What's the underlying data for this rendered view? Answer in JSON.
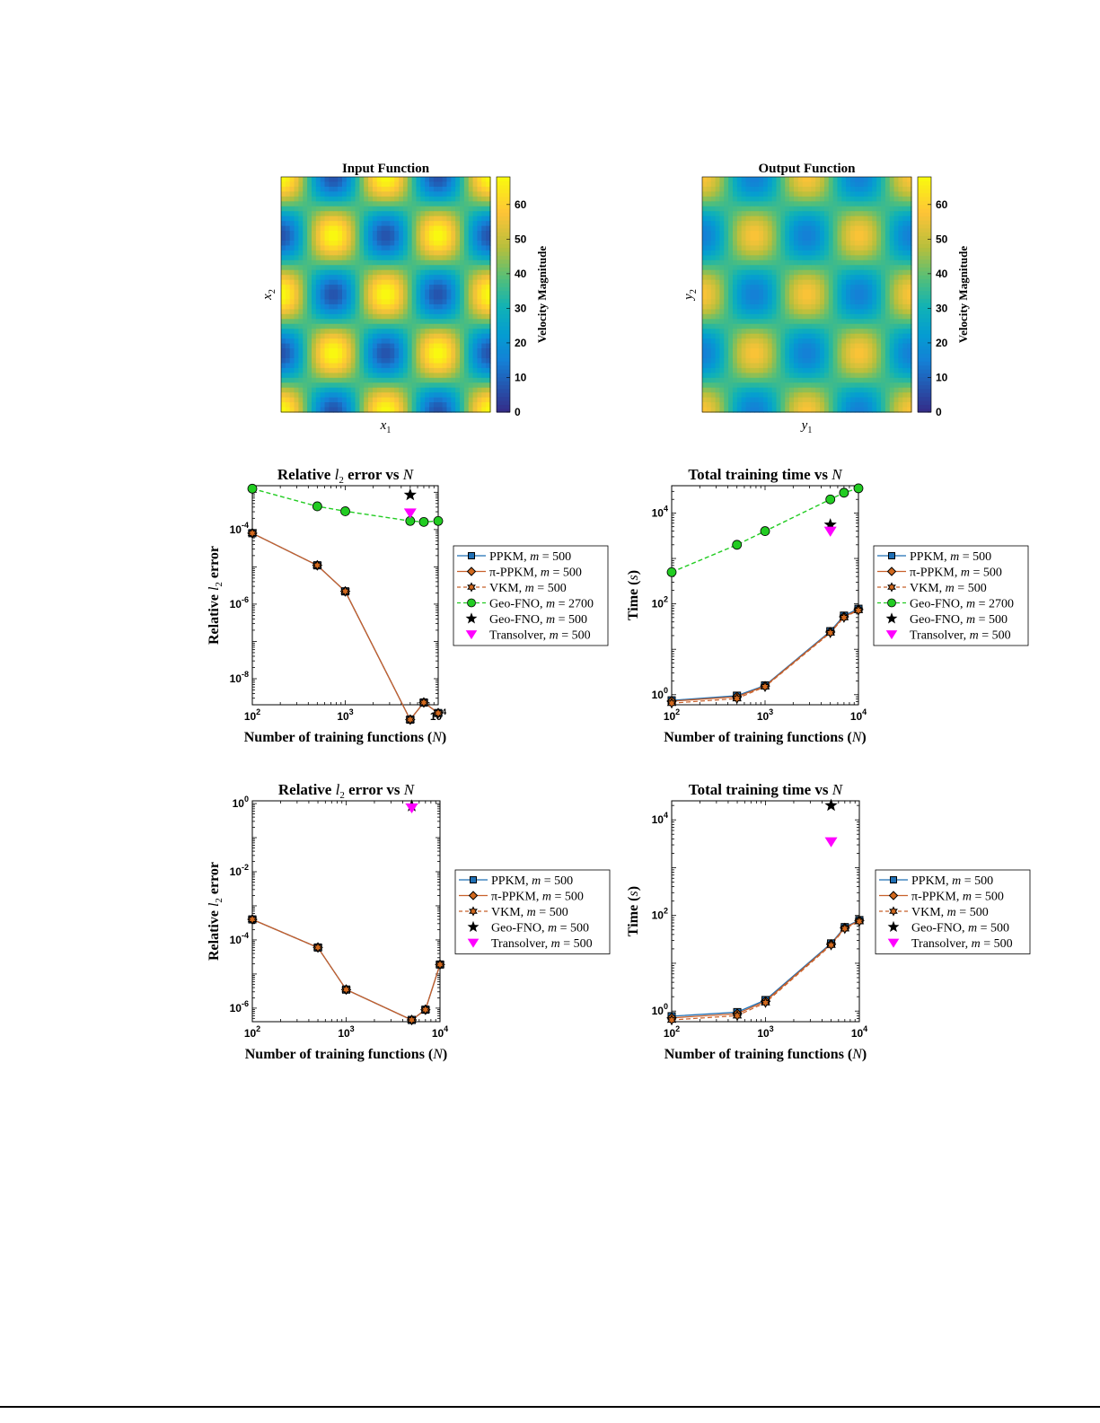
{
  "colors": {
    "ppkm": "#1f6fb4",
    "pippkm": "#d2691e",
    "vkm": "#d2691e",
    "geofno2700": "#22cc22",
    "geofno500": "#000000",
    "transolver": "#ff00ff",
    "line": "#c8602a"
  },
  "chart_data": [
    {
      "type": "heatmap",
      "title": "Input Function",
      "xlabel": "x1",
      "ylabel": "x2",
      "colorbar_label": "Velocity Magnitude",
      "colorbar_ticks": [
        0,
        10,
        20,
        30,
        40,
        50,
        60
      ],
      "clim": [
        0,
        68
      ],
      "colormap": "parula"
    },
    {
      "type": "heatmap",
      "title": "Output Function",
      "xlabel": "y1",
      "ylabel": "y2",
      "colorbar_label": "Velocity Magnitude",
      "colorbar_ticks": [
        0,
        10,
        20,
        30,
        40,
        50,
        60
      ],
      "clim": [
        0,
        68
      ],
      "colormap": "parula"
    },
    {
      "type": "line",
      "title": "Relative l2 error vs N",
      "xlabel": "Number of training functions (N)",
      "ylabel": "Relative l2 error",
      "xscale": "log",
      "yscale": "log",
      "xlim": [
        100,
        10000
      ],
      "ylim": [
        2e-09,
        0.0015
      ],
      "xticks": [
        {
          "v": 100,
          "label": "10^2"
        },
        {
          "v": 1000,
          "label": "10^3"
        },
        {
          "v": 10000,
          "label": "10^4"
        }
      ],
      "yticks": [
        {
          "v": 0.0001,
          "label": "10^-4"
        },
        {
          "v": 1e-06,
          "label": "10^-6"
        },
        {
          "v": 1e-08,
          "label": "10^-8"
        }
      ],
      "legend": "right",
      "series": [
        {
          "name": "PPKM,  m = 500",
          "key": "ppkm",
          "x": [
            100,
            500,
            1000,
            5000,
            7000,
            10000
          ],
          "values": [
            8e-05,
            1.1e-05,
            2.2e-06,
            8e-10,
            2.3e-09,
            1.2e-09
          ]
        },
        {
          "name": "π-PPKM,  m = 500",
          "key": "pippkm",
          "x": [
            100,
            500,
            1000,
            5000,
            7000,
            10000
          ],
          "values": [
            8e-05,
            1.1e-05,
            2.2e-06,
            8e-10,
            2.3e-09,
            1.2e-09
          ]
        },
        {
          "name": "VKM, m = 500",
          "key": "vkm",
          "x": [
            100,
            500,
            1000,
            5000,
            7000,
            10000
          ],
          "values": [
            8e-05,
            1.1e-05,
            2.2e-06,
            8e-10,
            2.3e-09,
            1.2e-09
          ]
        },
        {
          "name": "Geo-FNO, m = 2700",
          "key": "geofno2700",
          "x": [
            100,
            500,
            1000,
            5000,
            7000,
            10000
          ],
          "values": [
            0.00125,
            0.00042,
            0.00031,
            0.00017,
            0.00016,
            0.00017
          ]
        },
        {
          "name": "Geo-FNO, m = 500",
          "key": "geofno500",
          "x": [
            5000
          ],
          "values": [
            0.00085
          ]
        },
        {
          "name": "Transolver, m = 500",
          "key": "transolver",
          "x": [
            5000
          ],
          "values": [
            0.00028
          ]
        }
      ]
    },
    {
      "type": "line",
      "title": "Total training time vs N",
      "xlabel": "Number of training functions (N)",
      "ylabel": "Time (s)",
      "xscale": "log",
      "yscale": "log",
      "xlim": [
        100,
        10000
      ],
      "ylim": [
        0.6,
        40000
      ],
      "xticks": [
        {
          "v": 100,
          "label": "10^2"
        },
        {
          "v": 1000,
          "label": "10^3"
        },
        {
          "v": 10000,
          "label": "10^4"
        }
      ],
      "yticks": [
        {
          "v": 1,
          "label": "10^0"
        },
        {
          "v": 100,
          "label": "10^2"
        },
        {
          "v": 10000,
          "label": "10^4"
        }
      ],
      "legend": "right",
      "series": [
        {
          "name": "PPKM,  m = 500",
          "key": "ppkm",
          "x": [
            100,
            500,
            1000,
            5000,
            7000,
            10000
          ],
          "values": [
            0.75,
            0.95,
            1.6,
            25,
            55,
            78
          ]
        },
        {
          "name": "π-PPKM,  m = 500",
          "key": "pippkm",
          "x": [
            100,
            500,
            1000,
            5000,
            7000,
            10000
          ],
          "values": [
            0.72,
            0.9,
            1.55,
            24,
            52,
            75
          ]
        },
        {
          "name": "VKM, m = 500",
          "key": "vkm",
          "x": [
            100,
            500,
            1000,
            5000,
            7000,
            10000
          ],
          "values": [
            0.65,
            0.82,
            1.5,
            23,
            50,
            72
          ]
        },
        {
          "name": "Geo-FNO, m = 2700",
          "key": "geofno2700",
          "x": [
            100,
            500,
            1000,
            5000,
            7000,
            10000
          ],
          "values": [
            500,
            2000,
            4000,
            20000,
            28000,
            35000
          ]
        },
        {
          "name": "Geo-FNO, m = 500",
          "key": "geofno500",
          "x": [
            5000
          ],
          "values": [
            5500
          ]
        },
        {
          "name": "Transolver, m = 500",
          "key": "transolver",
          "x": [
            5000
          ],
          "values": [
            4000
          ]
        }
      ]
    },
    {
      "type": "line",
      "title": "Relative l2 error vs N",
      "xlabel": "Number of training functions (N)",
      "ylabel": "Relative l2 error",
      "xscale": "log",
      "yscale": "log",
      "xlim": [
        100,
        10000
      ],
      "ylim": [
        4e-07,
        1.2
      ],
      "xticks": [
        {
          "v": 100,
          "label": "10^2"
        },
        {
          "v": 1000,
          "label": "10^3"
        },
        {
          "v": 10000,
          "label": "10^4"
        }
      ],
      "yticks": [
        {
          "v": 1,
          "label": "10^0"
        },
        {
          "v": 0.01,
          "label": "10^-2"
        },
        {
          "v": 0.0001,
          "label": "10^-4"
        },
        {
          "v": 1e-06,
          "label": "10^-6"
        }
      ],
      "legend": "right",
      "series": [
        {
          "name": "PPKM,  m = 500",
          "key": "ppkm",
          "x": [
            100,
            500,
            1000,
            5000,
            7000,
            10000
          ],
          "values": [
            0.0004,
            6e-05,
            3.5e-06,
            4.5e-07,
            9e-07,
            1.9e-05
          ]
        },
        {
          "name": "π-PPKM,  m = 500",
          "key": "pippkm",
          "x": [
            100,
            500,
            1000,
            5000,
            7000,
            10000
          ],
          "values": [
            0.0004,
            6e-05,
            3.5e-06,
            4.5e-07,
            9e-07,
            1.9e-05
          ]
        },
        {
          "name": "VKM, m = 500",
          "key": "vkm",
          "x": [
            100,
            500,
            1000,
            5000,
            7000,
            10000
          ],
          "values": [
            0.0004,
            6e-05,
            3.5e-06,
            4.5e-07,
            9e-07,
            1.9e-05
          ]
        },
        {
          "name": "Geo-FNO, m = 500",
          "key": "geofno500",
          "x": [
            5000
          ],
          "values": [
            0.85
          ]
        },
        {
          "name": "Transolver, m = 500",
          "key": "transolver",
          "x": [
            5000
          ],
          "values": [
            0.75
          ]
        }
      ]
    },
    {
      "type": "line",
      "title": "Total training time vs N",
      "xlabel": "Number of training functions (N)",
      "ylabel": "Time (s)",
      "xscale": "log",
      "yscale": "log",
      "xlim": [
        100,
        10000
      ],
      "ylim": [
        0.6,
        25000
      ],
      "xticks": [
        {
          "v": 100,
          "label": "10^2"
        },
        {
          "v": 1000,
          "label": "10^3"
        },
        {
          "v": 10000,
          "label": "10^4"
        }
      ],
      "yticks": [
        {
          "v": 1,
          "label": "10^0"
        },
        {
          "v": 100,
          "label": "10^2"
        },
        {
          "v": 10000,
          "label": "10^4"
        }
      ],
      "legend": "right",
      "series": [
        {
          "name": "PPKM,  m = 500",
          "key": "ppkm",
          "x": [
            100,
            500,
            1000,
            5000,
            7000,
            10000
          ],
          "values": [
            0.78,
            0.95,
            1.7,
            26,
            57,
            80
          ]
        },
        {
          "name": "π-PPKM,  m = 500",
          "key": "pippkm",
          "x": [
            100,
            500,
            1000,
            5000,
            7000,
            10000
          ],
          "values": [
            0.72,
            0.88,
            1.6,
            25,
            55,
            78
          ]
        },
        {
          "name": "VKM, m = 500",
          "key": "vkm",
          "x": [
            100,
            500,
            1000,
            5000,
            7000,
            10000
          ],
          "values": [
            0.65,
            0.8,
            1.5,
            24,
            53,
            75
          ]
        },
        {
          "name": "Geo-FNO, m = 500",
          "key": "geofno500",
          "x": [
            5000
          ],
          "values": [
            20000
          ]
        },
        {
          "name": "Transolver, m = 500",
          "key": "transolver",
          "x": [
            5000
          ],
          "values": [
            3500
          ]
        }
      ]
    }
  ]
}
